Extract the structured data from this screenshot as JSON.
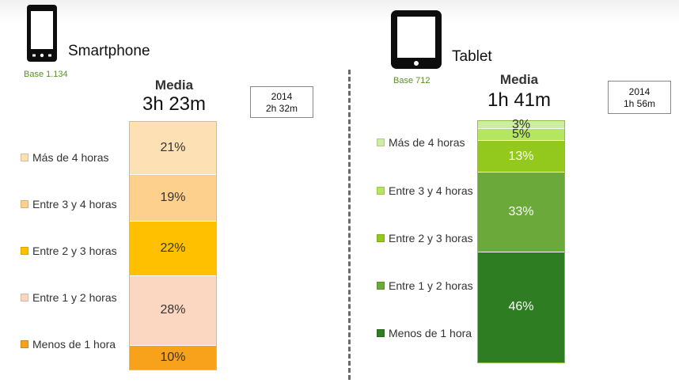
{
  "charts": [
    {
      "id": "smartphone",
      "device": "phone",
      "title": "Smartphone",
      "base": "Base 1.134",
      "media_label": "Media",
      "media_value": "3h 23m",
      "prev_year": "2014",
      "prev_value": "2h 32m",
      "legend": [
        "Más de 4 horas",
        "Entre 3 y 4 horas",
        "Entre 2 y 3 horas",
        "Entre 1 y 2 horas",
        "Menos de 1 hora"
      ],
      "colors": [
        "#fde0b3",
        "#fdd08e",
        "#ffc000",
        "#fbd7c2",
        "#f8a21c"
      ],
      "values": [
        21,
        19,
        22,
        28,
        10
      ],
      "labels": [
        "21%",
        "19%",
        "22%",
        "28%",
        "10%"
      ]
    },
    {
      "id": "tablet",
      "device": "tablet",
      "title": "Tablet",
      "base": "Base  712",
      "media_label": "Media",
      "media_value": "1h 41m",
      "prev_year": "2014",
      "prev_value": "1h 56m",
      "legend": [
        "Más de 4 horas",
        "Entre 3 y 4 horas",
        "Entre 2 y 3 horas",
        "Entre 1 y 2 horas",
        "Menos de 1 hora"
      ],
      "colors": [
        "#cdeea0",
        "#b5e65f",
        "#92c91c",
        "#6aa93a",
        "#2e7d22"
      ],
      "values": [
        3,
        5,
        13,
        33,
        46
      ],
      "labels": [
        "3%",
        "5%",
        "13%",
        "33%",
        "46%"
      ]
    }
  ],
  "chart_data": [
    {
      "type": "bar",
      "title": "Smartphone",
      "categories": [
        "Más de 4 horas",
        "Entre 3 y 4 horas",
        "Entre 2 y 3 horas",
        "Entre 1 y 2 horas",
        "Menos de 1 hora"
      ],
      "values": [
        21,
        19,
        22,
        28,
        10
      ],
      "stacked": true
    },
    {
      "type": "bar",
      "title": "Tablet",
      "categories": [
        "Más de 4 horas",
        "Entre 3 y 4 horas",
        "Entre 2 y 3 horas",
        "Entre 1 y 2 horas",
        "Menos de 1 hora"
      ],
      "values": [
        3,
        5,
        13,
        33,
        46
      ],
      "stacked": true
    }
  ]
}
